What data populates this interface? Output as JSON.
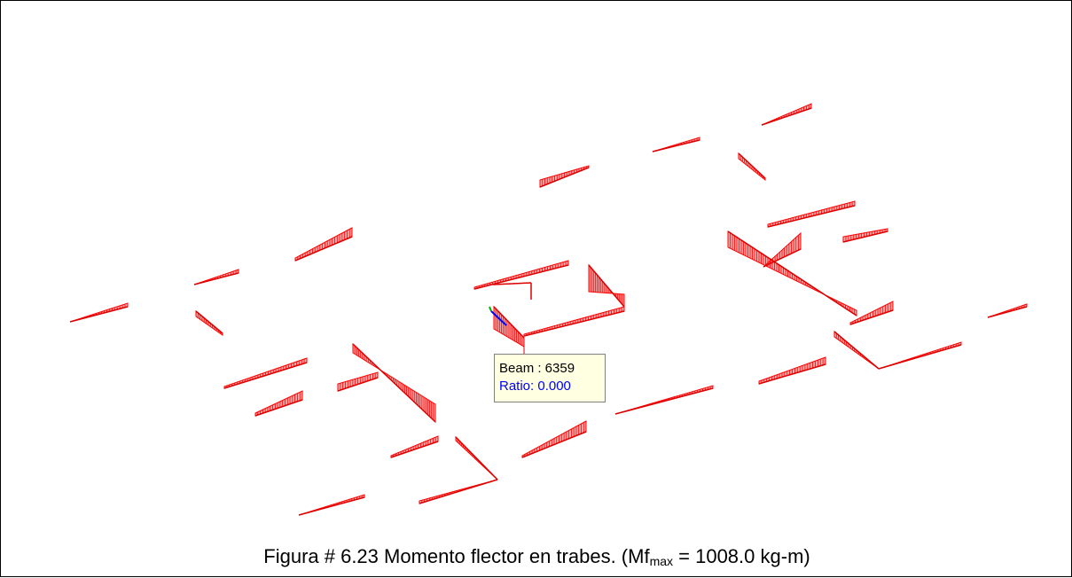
{
  "tooltip": {
    "beam": "Beam : 6359",
    "ratio": "Ratio: 0.000"
  },
  "caption": {
    "text": "Figura # 6.23  Momento flector en trabes.  (Mf",
    "subscript": "max",
    "rest": " = 1008.0 kg-m)"
  }
}
